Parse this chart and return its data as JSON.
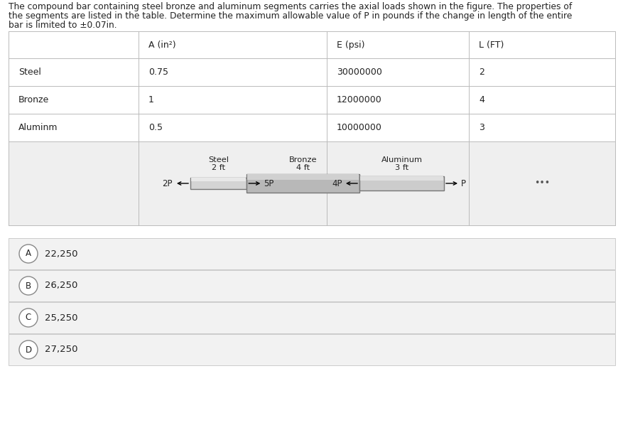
{
  "problem_text_line1": "The compound bar containing steel bronze and aluminum segments carries the axial loads shown in the figure. The properties of",
  "problem_text_line2": "the segments are listed in the table. Determine the maximum allowable value of P in pounds if the change in length of the entire",
  "problem_text_line3": "bar is limited to ±0.07in.",
  "table_headers": [
    "",
    "A (in²)",
    "E (psi)",
    "L (FT)"
  ],
  "table_rows": [
    [
      "Steel",
      "0.75",
      "30000000",
      "2"
    ],
    [
      "Bronze",
      "1",
      "12000000",
      "4"
    ],
    [
      "Aluminm",
      "0.5",
      "10000000",
      "3"
    ]
  ],
  "seg_names": [
    "Steel",
    "Bronze",
    "Aluminum"
  ],
  "seg_lengths": [
    "2 ft",
    "4 ft",
    "3 ft"
  ],
  "seg_proportions": [
    2,
    4,
    3
  ],
  "loads": [
    "2P",
    "5P",
    "4P",
    "P"
  ],
  "choices": [
    {
      "letter": "A",
      "value": "22,250"
    },
    {
      "letter": "B",
      "value": "26,250"
    },
    {
      "letter": "C",
      "value": "25,250"
    },
    {
      "letter": "D",
      "value": "27,250"
    }
  ],
  "bg_color": "#ffffff",
  "table_line_color": "#bbbbbb",
  "diagram_bg_color": "#efefef",
  "choice_bg_color": "#f2f2f2",
  "choice_border_color": "#cccccc",
  "text_color": "#222222",
  "dots_color": "#555555",
  "bar_color_steel": "#d4d4d4",
  "bar_color_bronze": "#b8b8b8",
  "bar_color_alum": "#cccccc",
  "bar_top_steel": "#e8e8e8",
  "bar_top_bronze": "#d0d0d0",
  "bar_top_alum": "#e0e0e0"
}
